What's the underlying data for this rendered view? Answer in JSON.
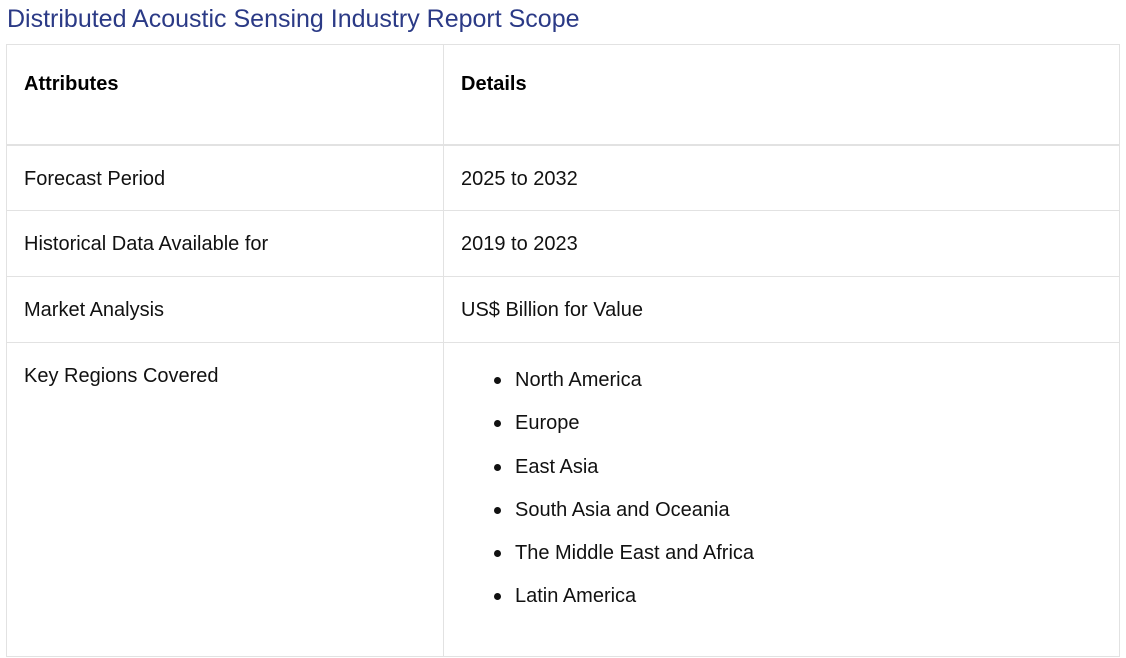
{
  "page": {
    "title": "Distributed Acoustic Sensing Industry Report Scope"
  },
  "table": {
    "headers": {
      "attributes": "Attributes",
      "details": "Details"
    },
    "rows": [
      {
        "attribute": "Forecast Period",
        "detail": "2025 to 2032"
      },
      {
        "attribute": "Historical Data Available for",
        "detail": "2019 to 2023"
      },
      {
        "attribute": "Market Analysis",
        "detail": "US$ Billion for Value"
      }
    ],
    "regions": {
      "attribute": "Key Regions Covered",
      "items": [
        "North America",
        "Europe",
        "East Asia",
        "South Asia and Oceania",
        "The Middle East and Africa",
        "Latin America"
      ]
    }
  },
  "colors": {
    "title": "#2b3a86",
    "border": "#e2e2e2",
    "text": "#111111"
  }
}
